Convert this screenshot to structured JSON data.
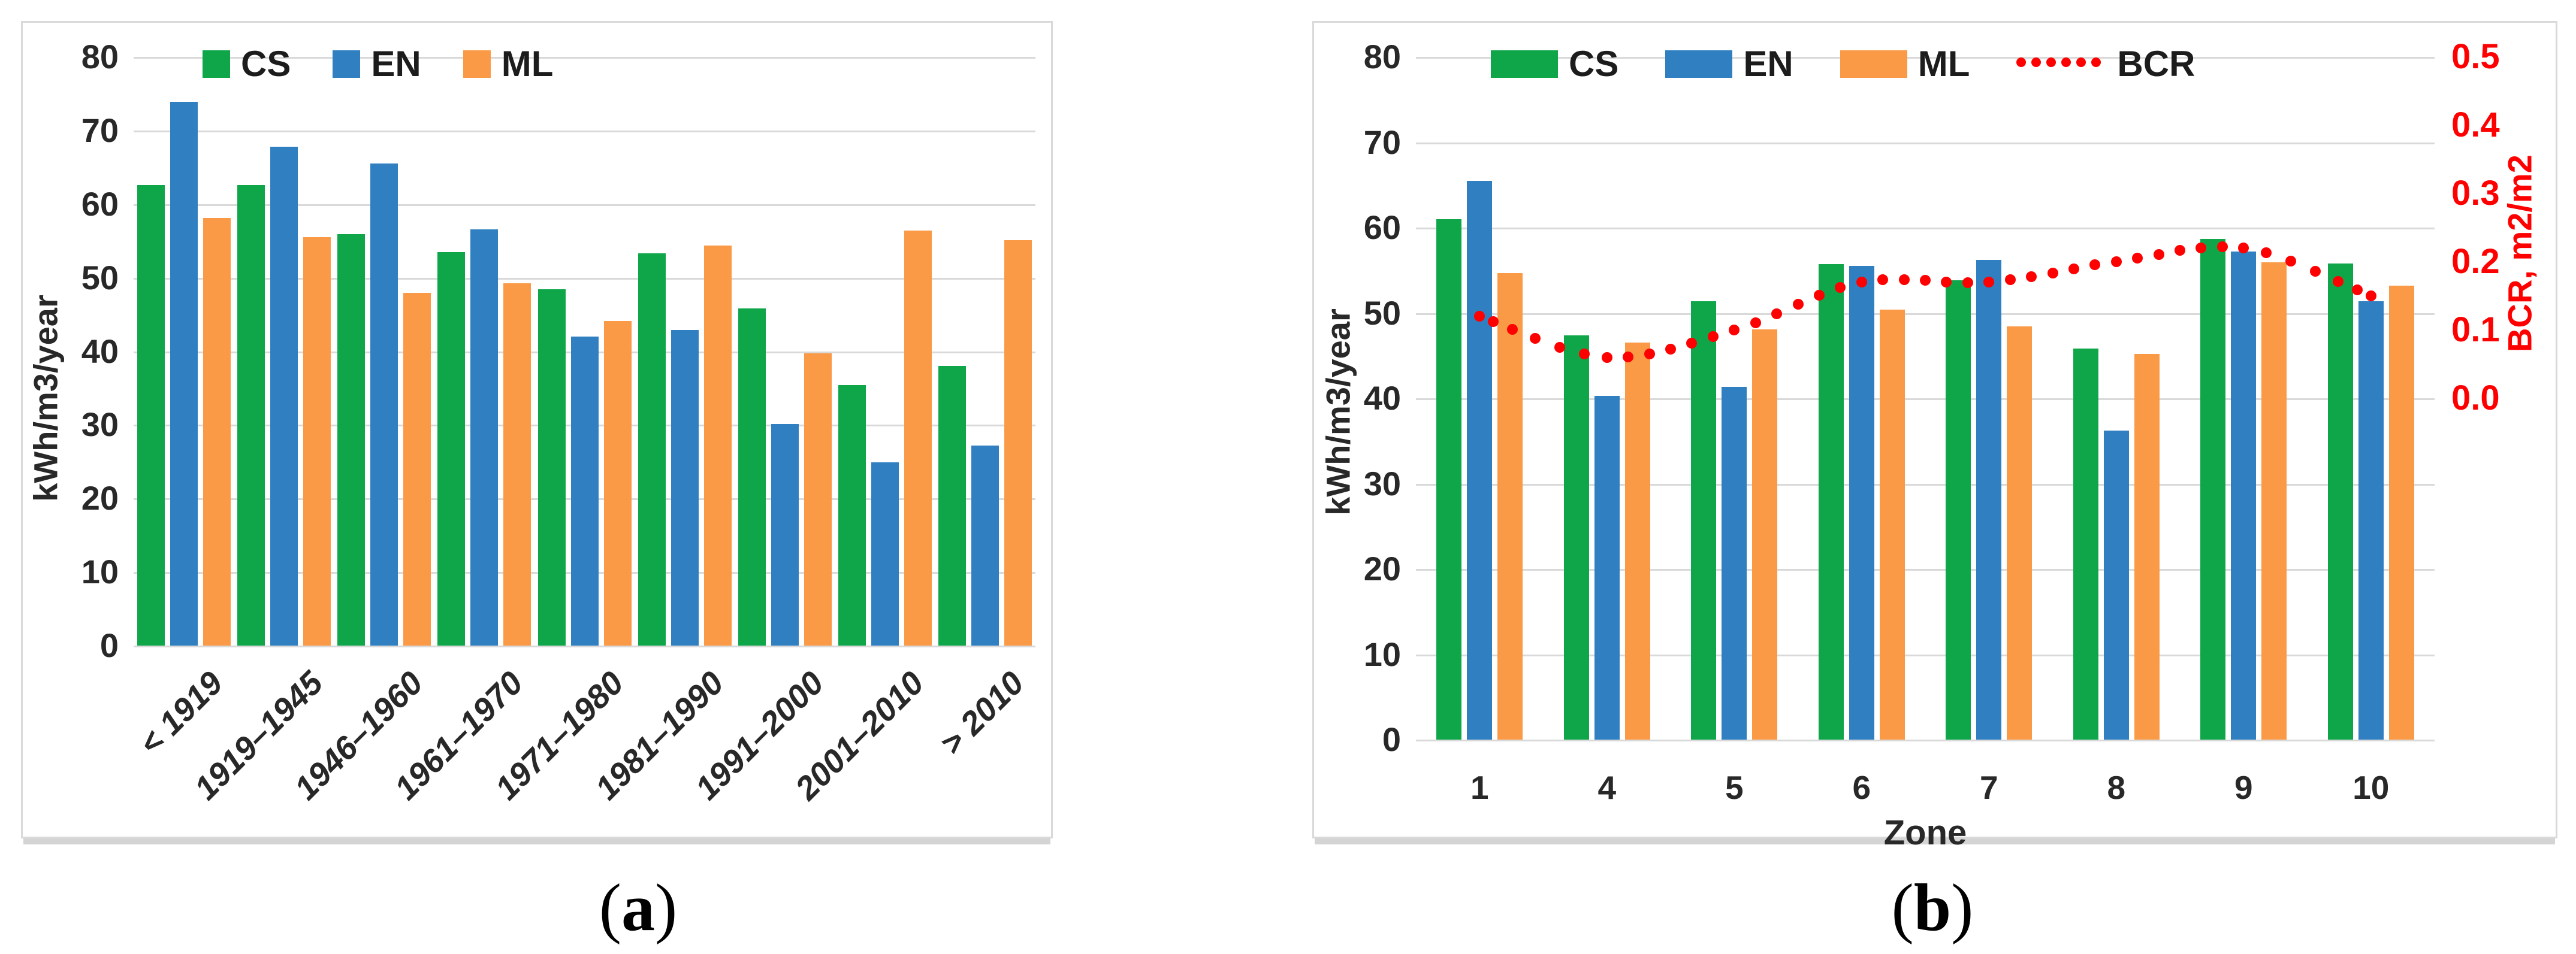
{
  "colors": {
    "cs": "#0fa64a",
    "en": "#2f7fc1",
    "ml": "#fa9a47",
    "bcr": "#ff0000",
    "grid": "#d9d9d9",
    "axis_text": "#282828",
    "right_axis_text": "#ff0000",
    "panel_border": "#d9d9d9"
  },
  "captions": {
    "a": {
      "open": "(",
      "letter": "a",
      "close": ")"
    },
    "b": {
      "open": "(",
      "letter": "b",
      "close": ")"
    }
  },
  "chart_data": [
    {
      "id": "a",
      "type": "bar",
      "title": "",
      "ylabel": "kWh/m3/year",
      "xlabel": "",
      "ylim": [
        0,
        80
      ],
      "yticks": [
        80,
        70,
        60,
        50,
        40,
        30,
        20,
        10,
        0
      ],
      "grid": true,
      "legend_position": "top-left-inside",
      "categories": [
        "< 1919",
        "1919–1945",
        "1946–1960",
        "1961–1970",
        "1971–1980",
        "1981–1990",
        "1991–2000",
        "2001–2010",
        "> 2010"
      ],
      "series": [
        {
          "name": "CS",
          "color_key": "cs",
          "values": [
            62.6,
            62.6,
            55.9,
            53.5,
            48.4,
            53.3,
            45.8,
            35.4,
            38.0
          ]
        },
        {
          "name": "EN",
          "color_key": "en",
          "values": [
            73.9,
            67.8,
            65.5,
            56.6,
            42.0,
            42.9,
            30.1,
            24.9,
            27.2
          ]
        },
        {
          "name": "ML",
          "color_key": "ml",
          "values": [
            58.1,
            55.5,
            47.9,
            49.2,
            44.1,
            54.4,
            39.7,
            56.4,
            55.1
          ]
        }
      ]
    },
    {
      "id": "b",
      "type": "bar+line",
      "title": "",
      "ylabel": "kWh/m3/year",
      "xlabel": "Zone",
      "ylim": [
        0,
        80
      ],
      "yticks": [
        80,
        70,
        60,
        50,
        40,
        30,
        20,
        10,
        0
      ],
      "grid": true,
      "legend_position": "top-left-inside",
      "categories": [
        "1",
        "4",
        "5",
        "6",
        "7",
        "8",
        "9",
        "10"
      ],
      "series": [
        {
          "name": "CS",
          "color_key": "cs",
          "values": [
            61.0,
            47.4,
            51.4,
            55.7,
            53.8,
            45.8,
            58.7,
            55.8
          ]
        },
        {
          "name": "EN",
          "color_key": "en",
          "values": [
            65.5,
            40.3,
            41.3,
            55.5,
            56.2,
            36.2,
            57.2,
            51.4
          ]
        },
        {
          "name": "ML",
          "color_key": "ml",
          "values": [
            54.7,
            46.5,
            48.1,
            50.4,
            48.4,
            45.2,
            55.9,
            53.2
          ]
        }
      ],
      "line_series": {
        "name": "BCR",
        "axis": "right",
        "color_key": "bcr",
        "values": [
          0.12,
          0.06,
          0.1,
          0.17,
          0.17,
          0.2,
          0.22,
          0.15
        ]
      },
      "right_axis": {
        "label": "BCR, m2/m2",
        "ticks": [
          "0.5",
          "0.4",
          "0.3",
          "0.2",
          "0.1",
          "0.0"
        ],
        "top_value_at": 80,
        "zero_value_at": 40
      }
    }
  ]
}
